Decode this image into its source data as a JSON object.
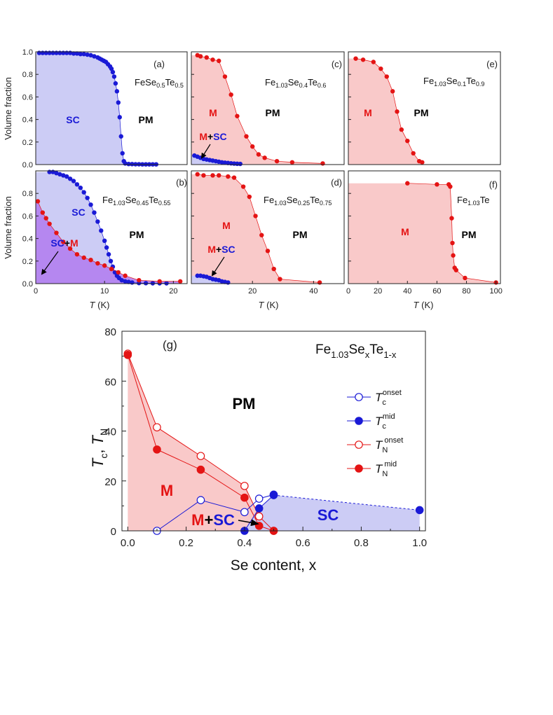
{
  "colors": {
    "sc_fill": "#ccccf5",
    "m_fill": "#f9c9c9",
    "overlap_fill": "#b27ff0",
    "sc_marker": "#1a1ad6",
    "m_marker": "#e41414",
    "axis": "#222222"
  },
  "panels_top": {
    "y_axis_label": "Volume fraction",
    "x_axis_label_italic": "T",
    "x_axis_label_unit": " (K)"
  },
  "chart_data": [
    {
      "type": "area",
      "panel": "(a)",
      "composition": {
        "main": "FeSe",
        "s1": "0.5",
        "mid": "Te",
        "s2": "0.5"
      },
      "xlim": [
        0,
        22
      ],
      "ylim": [
        0,
        1.0
      ],
      "y_ticks": [
        "0.0",
        "0.2",
        "0.4",
        "0.6",
        "0.8",
        "1.0"
      ],
      "x_ticks": [],
      "phase_labels": [
        "SC",
        "PM"
      ],
      "series": [
        {
          "phase": "SC",
          "x": [
            0.5,
            1,
            1.5,
            2,
            2.5,
            3,
            3.5,
            4,
            4.5,
            5,
            5.5,
            6,
            6.5,
            7,
            7.5,
            8,
            8.5,
            9,
            9.3,
            9.6,
            9.9,
            10.2,
            10.5,
            10.8,
            11.0,
            11.2,
            11.4,
            11.6,
            11.8,
            12.0,
            12.2,
            12.4,
            12.6,
            12.8,
            13.0,
            13.5,
            14,
            14.5,
            15,
            15.5,
            16,
            16.5,
            17,
            17.5
          ],
          "y": [
            0.99,
            0.99,
            0.99,
            0.99,
            0.99,
            0.99,
            0.99,
            0.99,
            0.99,
            0.99,
            0.985,
            0.985,
            0.98,
            0.98,
            0.975,
            0.97,
            0.96,
            0.95,
            0.94,
            0.93,
            0.92,
            0.91,
            0.89,
            0.87,
            0.85,
            0.82,
            0.78,
            0.72,
            0.65,
            0.55,
            0.42,
            0.25,
            0.1,
            0.03,
            0.01,
            0.005,
            0.004,
            0.003,
            0.003,
            0.002,
            0.002,
            0.002,
            0.002,
            0.002
          ]
        }
      ]
    },
    {
      "type": "area",
      "panel": "(b)",
      "composition": {
        "main": "Fe",
        "s0": "1.03",
        "mid": "Se",
        "s1": "0.45",
        "mid2": "Te",
        "s2": "0.55"
      },
      "xlim": [
        0,
        22
      ],
      "ylim": [
        0,
        1.0
      ],
      "y_ticks": [
        "0.0",
        "0.2",
        "0.4",
        "0.6",
        "0.8"
      ],
      "x_ticks": [
        "0",
        "10",
        "20"
      ],
      "phase_labels": [
        "SC",
        "PM"
      ],
      "overlap_label": {
        "a": "SC",
        "b": "+",
        "c": "M"
      },
      "series": [
        {
          "phase": "SC",
          "x": [
            2,
            2.5,
            3,
            3.5,
            4,
            4.5,
            5,
            5.5,
            6,
            6.5,
            7,
            7.5,
            8,
            8.5,
            9,
            9.5,
            10,
            10.3,
            10.6,
            10.9,
            11.2,
            11.5,
            11.8,
            12.1,
            12.5,
            13,
            13.5,
            14,
            15,
            16,
            17,
            18,
            19
          ],
          "y": [
            0.99,
            0.99,
            0.98,
            0.97,
            0.96,
            0.95,
            0.93,
            0.91,
            0.88,
            0.85,
            0.81,
            0.76,
            0.7,
            0.63,
            0.55,
            0.47,
            0.38,
            0.32,
            0.26,
            0.2,
            0.15,
            0.1,
            0.07,
            0.05,
            0.03,
            0.02,
            0.015,
            0.01,
            0.005,
            0.004,
            0.003,
            0.003,
            0.003
          ]
        },
        {
          "phase": "M",
          "x": [
            0.3,
            1,
            1.5,
            2,
            3,
            4,
            5,
            6,
            7,
            8,
            9,
            10,
            11,
            12,
            13,
            15,
            18,
            21
          ],
          "y": [
            0.73,
            0.63,
            0.58,
            0.53,
            0.45,
            0.37,
            0.31,
            0.26,
            0.23,
            0.21,
            0.18,
            0.16,
            0.13,
            0.1,
            0.07,
            0.03,
            0.02,
            0.02
          ]
        }
      ]
    },
    {
      "type": "area",
      "panel": "(c)",
      "composition": {
        "main": "Fe",
        "s0": "1.03",
        "mid": "Se",
        "s1": "0.4",
        "mid2": "Te",
        "s2": "0.6"
      },
      "xlim": [
        0,
        50
      ],
      "ylim": [
        0,
        1.0
      ],
      "x_ticks": [],
      "phase_labels": [
        "M",
        "PM"
      ],
      "overlap_label": {
        "a": "M",
        "b": "+",
        "c": "SC"
      },
      "series": [
        {
          "phase": "M",
          "x": [
            2,
            3,
            5,
            7,
            9,
            11,
            13,
            15,
            18,
            20,
            22,
            24,
            28,
            33,
            43
          ],
          "y": [
            0.97,
            0.96,
            0.95,
            0.93,
            0.92,
            0.78,
            0.62,
            0.43,
            0.25,
            0.16,
            0.09,
            0.06,
            0.03,
            0.02,
            0.01
          ]
        },
        {
          "phase": "SC",
          "x": [
            1,
            2,
            3,
            4,
            5,
            6,
            7,
            8,
            9,
            10,
            11,
            12,
            13,
            14,
            15,
            16
          ],
          "y": [
            0.08,
            0.07,
            0.06,
            0.05,
            0.045,
            0.04,
            0.035,
            0.03,
            0.025,
            0.02,
            0.017,
            0.014,
            0.011,
            0.009,
            0.007,
            0.006
          ]
        }
      ]
    },
    {
      "type": "area",
      "panel": "(d)",
      "composition": {
        "main": "Fe",
        "s0": "1.03",
        "mid": "Se",
        "s1": "0.25",
        "mid2": "Te",
        "s2": "0.75"
      },
      "xlim": [
        0,
        50
      ],
      "ylim": [
        0,
        1.0
      ],
      "x_ticks": [
        "20",
        "40"
      ],
      "phase_labels": [
        "M",
        "PM"
      ],
      "overlap_label": {
        "a": "M",
        "b": "+",
        "c": "SC"
      },
      "series": [
        {
          "phase": "M",
          "x": [
            2,
            4,
            7,
            9,
            12,
            14,
            17,
            19,
            21,
            23,
            25,
            27,
            29,
            42
          ],
          "y": [
            0.97,
            0.96,
            0.96,
            0.96,
            0.95,
            0.94,
            0.86,
            0.77,
            0.6,
            0.43,
            0.29,
            0.13,
            0.04,
            0.01
          ]
        },
        {
          "phase": "SC",
          "x": [
            2,
            3,
            4,
            5,
            6,
            7,
            8,
            9,
            10,
            11,
            12
          ],
          "y": [
            0.07,
            0.07,
            0.065,
            0.06,
            0.05,
            0.04,
            0.035,
            0.03,
            0.02,
            0.015,
            0.01
          ]
        }
      ]
    },
    {
      "type": "area",
      "panel": "(e)",
      "composition": {
        "main": "Fe",
        "s0": "1.03",
        "mid": "Se",
        "s1": "0.1",
        "mid2": "Te",
        "s2": "0.9"
      },
      "xlim": [
        0,
        103
      ],
      "ylim": [
        0,
        1.0
      ],
      "x_ticks": [],
      "phase_labels": [
        "M",
        "PM"
      ],
      "series": [
        {
          "phase": "M",
          "x": [
            5,
            10,
            17,
            22,
            26,
            30,
            33,
            36,
            40,
            44,
            48,
            50
          ],
          "y": [
            0.94,
            0.93,
            0.91,
            0.85,
            0.78,
            0.65,
            0.47,
            0.31,
            0.21,
            0.1,
            0.03,
            0.02
          ]
        }
      ]
    },
    {
      "type": "area",
      "panel": "(f)",
      "composition": {
        "main": "Fe",
        "s0": "1.03",
        "mid": "Te"
      },
      "xlim": [
        0,
        103
      ],
      "ylim": [
        0,
        1.0
      ],
      "x_ticks": [
        "0",
        "20",
        "40",
        "60",
        "80",
        "100"
      ],
      "phase_labels": [
        "M",
        "PM"
      ],
      "series": [
        {
          "phase": "M",
          "x": [
            40,
            60,
            68,
            69,
            70,
            70.5,
            71,
            72,
            73,
            79,
            100
          ],
          "y": [
            0.89,
            0.88,
            0.88,
            0.86,
            0.58,
            0.36,
            0.25,
            0.14,
            0.12,
            0.05,
            0.01
          ]
        }
      ]
    },
    {
      "type": "line",
      "panel": "(g)",
      "title": {
        "main": "Fe",
        "s0": "1.03",
        "mid": "Se",
        "s1": "x",
        "mid2": "Te",
        "s2": "1-x"
      },
      "xlabel": "Se content, x",
      "xlim": [
        -0.02,
        1.02
      ],
      "ylim": [
        0,
        80
      ],
      "x_ticks": [
        "0.0",
        "0.2",
        "0.4",
        "0.6",
        "0.8",
        "1.0"
      ],
      "y_ticks": [
        "0",
        "20",
        "40",
        "60",
        "80"
      ],
      "region_labels": {
        "pm": "PM",
        "m": "M",
        "sc": "SC"
      },
      "overlap_label": {
        "a": "M",
        "b": "+",
        "c": "SC"
      },
      "series": [
        {
          "key": "tc_onset",
          "x": [
            0.1,
            0.25,
            0.4,
            0.45,
            0.5
          ],
          "y": [
            0,
            12.3,
            7.5,
            12.9,
            14.5
          ]
        },
        {
          "key": "tc_mid",
          "x": [
            0.4,
            0.45,
            0.5,
            1.0
          ],
          "y": [
            0,
            9,
            14.3,
            8.3
          ]
        },
        {
          "key": "tn_onset",
          "x": [
            0,
            0.1,
            0.25,
            0.4,
            0.45,
            0.5
          ],
          "y": [
            71,
            41.5,
            30,
            18,
            5.8,
            0
          ]
        },
        {
          "key": "tn_mid",
          "x": [
            0,
            0.1,
            0.25,
            0.4,
            0.45,
            0.5
          ],
          "y": [
            70.5,
            32.6,
            24.5,
            13.3,
            2,
            0
          ]
        }
      ],
      "legend": [
        {
          "key": "tc_onset",
          "sym": "T",
          "sub": "c",
          "sup": "onset"
        },
        {
          "key": "tc_mid",
          "sym": "T",
          "sub": "c",
          "sup": "mid"
        },
        {
          "key": "tn_onset",
          "sym": "T",
          "sub": "N",
          "sup": "onset"
        },
        {
          "key": "tn_mid",
          "sym": "T",
          "sub": "N",
          "sup": "mid"
        }
      ]
    }
  ]
}
